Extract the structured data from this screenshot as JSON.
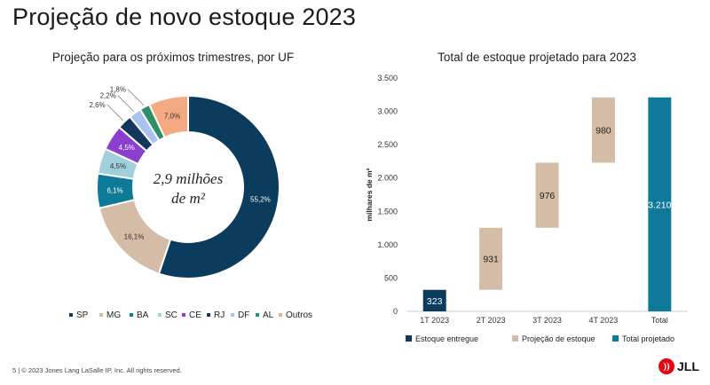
{
  "slide": {
    "title": "Projeção de novo estoque 2023",
    "footer": "5  |  © 2023 Jones Lang LaSalle IP, Inc. All rights reserved.",
    "logo_text": "JLL"
  },
  "chart_data": [
    {
      "type": "pie",
      "style": "donut",
      "title": "Projeção para os próximos trimestres, por UF",
      "center_label_line1": "2,9 milhões",
      "center_label_line2": "de m²",
      "legend_position": "bottom",
      "slices": [
        {
          "label": "SP",
          "value": 55.2,
          "display": "55,2%",
          "color": "#0b3c5d"
        },
        {
          "label": "MG",
          "value": 16.1,
          "display": "16,1%",
          "color": "#d4bca6"
        },
        {
          "label": "BA",
          "value": 6.1,
          "display": "6,1%",
          "color": "#0e7a98"
        },
        {
          "label": "SC",
          "value": 4.5,
          "display": "4,5%",
          "color": "#9fd0dc"
        },
        {
          "label": "CE",
          "value": 4.5,
          "display": "4,5%",
          "color": "#8b3fd0"
        },
        {
          "label": "RJ",
          "value": 2.6,
          "display": "2,6%",
          "color": "#15365e"
        },
        {
          "label": "DF",
          "value": 2.2,
          "display": "2,2%",
          "color": "#a9c2f0"
        },
        {
          "label": "AL",
          "value": 1.8,
          "display": "1,8%",
          "color": "#2f8f6a"
        },
        {
          "label": "Outros",
          "value": 7.0,
          "display": "7,0%",
          "color": "#f4aa80"
        }
      ]
    },
    {
      "type": "bar",
      "style": "waterfall",
      "title": "Total de estoque projetado para 2023",
      "ylabel": "milhares de m²",
      "ylim": [
        0,
        3500
      ],
      "yticks": [
        0,
        500,
        1000,
        1500,
        2000,
        2500,
        3000,
        3500
      ],
      "ytick_labels": [
        "0",
        "500",
        "1.000",
        "1.500",
        "2.000",
        "2.500",
        "3.000",
        "3.500"
      ],
      "grid": false,
      "legend_position": "bottom",
      "categories": [
        "1T 2023",
        "2T 2023",
        "3T 2023",
        "4T 2023",
        "Total"
      ],
      "bars": [
        {
          "category": "1T 2023",
          "start": 0,
          "end": 323,
          "label": "323",
          "kind": "delivered"
        },
        {
          "category": "2T 2023",
          "start": 323,
          "end": 1254,
          "label": "931",
          "kind": "projection"
        },
        {
          "category": "3T 2023",
          "start": 1254,
          "end": 2230,
          "label": "976",
          "kind": "projection"
        },
        {
          "category": "4T 2023",
          "start": 2230,
          "end": 3210,
          "label": "980",
          "kind": "projection"
        },
        {
          "category": "Total",
          "start": 0,
          "end": 3210,
          "label": "3.210",
          "kind": "total"
        }
      ],
      "legend": [
        {
          "kind": "delivered",
          "label": "Estoque entregue",
          "color": "#0b3c5d"
        },
        {
          "kind": "projection",
          "label": "Projeção de estoque",
          "color": "#d4bca6"
        },
        {
          "kind": "total",
          "label": "Total projetado",
          "color": "#0e7a98"
        }
      ]
    }
  ]
}
